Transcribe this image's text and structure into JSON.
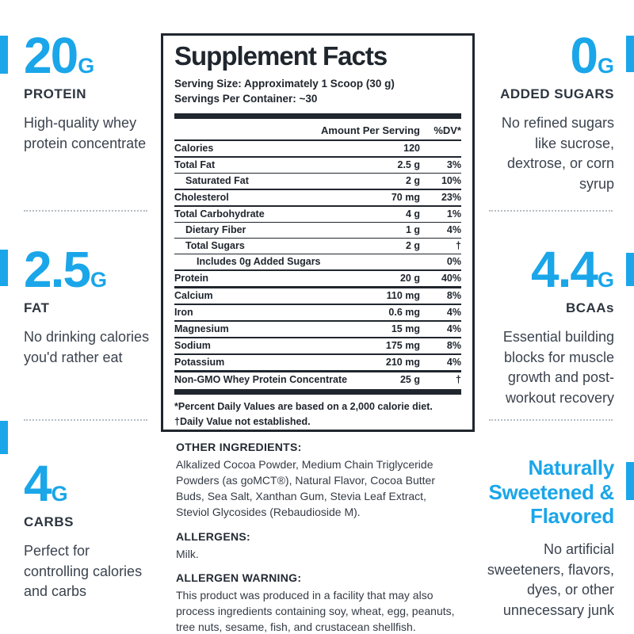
{
  "colors": {
    "accent_blue": "#1aa6e9",
    "heading_dark": "#2d3540",
    "label_ink": "#20262e"
  },
  "callouts": {
    "left": [
      {
        "value": "20",
        "unit": "G",
        "label": "PROTEIN",
        "body": "High-quality whey protein concentrate"
      },
      {
        "value": "2.5",
        "unit": "G",
        "label": "FAT",
        "body": "No drinking calories you'd rather eat"
      },
      {
        "value": "4",
        "unit": "G",
        "label": "CARBS",
        "body": "Perfect for controlling calories and carbs"
      }
    ],
    "right": [
      {
        "value": "0",
        "unit": "G",
        "label": "ADDED SUGARS",
        "body": "No refined sugars like sucrose, dextrose, or corn syrup"
      },
      {
        "value": "4.4",
        "unit": "G",
        "label": "BCAAs",
        "body": "Essential building blocks for muscle growth and post-workout recovery"
      },
      {
        "heading": "Naturally Sweetened & Flavored",
        "body": "No artificial sweeteners, flavors, dyes, or other unnecessary junk"
      }
    ]
  },
  "label": {
    "title": "Supplement Facts",
    "serving_size": "Serving Size: Approximately 1 Scoop (30 g)",
    "servings_per_container": "Servings Per Container: ~30",
    "col_amount": "Amount Per Serving",
    "col_dv": "%DV*",
    "rows": [
      {
        "name": "Calories",
        "amount": "120",
        "dv": "",
        "indent": 0,
        "sep": "s2"
      },
      {
        "name": "Total Fat",
        "amount": "2.5 g",
        "dv": "3%",
        "indent": 0,
        "sep": "s1"
      },
      {
        "name": "Saturated Fat",
        "amount": "2 g",
        "dv": "10%",
        "indent": 1,
        "sep": "s2"
      },
      {
        "name": "Cholesterol",
        "amount": "70 mg",
        "dv": "23%",
        "indent": 0,
        "sep": "s2"
      },
      {
        "name": "Total Carbohydrate",
        "amount": "4 g",
        "dv": "1%",
        "indent": 0,
        "sep": "s1"
      },
      {
        "name": "Dietary Fiber",
        "amount": "1 g",
        "dv": "4%",
        "indent": 1,
        "sep": "s1"
      },
      {
        "name": "Total Sugars",
        "amount": "2 g",
        "dv": "†",
        "indent": 1,
        "sep": "s1"
      },
      {
        "name": "Includes 0g Added Sugars",
        "amount": "",
        "dv": "0%",
        "indent": 2,
        "sep": "s2"
      },
      {
        "name": "Protein",
        "amount": "20 g",
        "dv": "40%",
        "indent": 0,
        "sep": "s3"
      },
      {
        "name": "Calcium",
        "amount": "110 mg",
        "dv": "8%",
        "indent": 0,
        "sep": "s2"
      },
      {
        "name": "Iron",
        "amount": "0.6 mg",
        "dv": "4%",
        "indent": 0,
        "sep": "s2"
      },
      {
        "name": "Magnesium",
        "amount": "15 mg",
        "dv": "4%",
        "indent": 0,
        "sep": "s2"
      },
      {
        "name": "Sodium",
        "amount": "175 mg",
        "dv": "8%",
        "indent": 0,
        "sep": "s2"
      },
      {
        "name": "Potassium",
        "amount": "210 mg",
        "dv": "4%",
        "indent": 0,
        "sep": "s3"
      },
      {
        "name": "Non-GMO Whey Protein Concentrate",
        "amount": "25 g",
        "dv": "†",
        "indent": 0,
        "sep": "none"
      }
    ],
    "footnote_1": "*Percent Daily Values are based on a 2,000 calorie diet.",
    "footnote_2": "†Daily Value not established."
  },
  "ingredients": {
    "other_heading": "OTHER INGREDIENTS:",
    "other_body": "Alkalized Cocoa Powder, Medium Chain Triglyceride Powders (as goMCT®), Natural Flavor, Cocoa Butter Buds, Sea Salt, Xanthan Gum, Stevia Leaf Extract, Steviol Glycosides (Rebaudioside M).",
    "allergens_heading": "ALLERGENS:",
    "allergens_body": "Milk.",
    "warning_heading": "ALLERGEN WARNING:",
    "warning_body": "This product was produced in a facility that may also process ingredients containing soy, wheat, egg, peanuts, tree nuts, sesame, fish, and crustacean shellfish."
  }
}
